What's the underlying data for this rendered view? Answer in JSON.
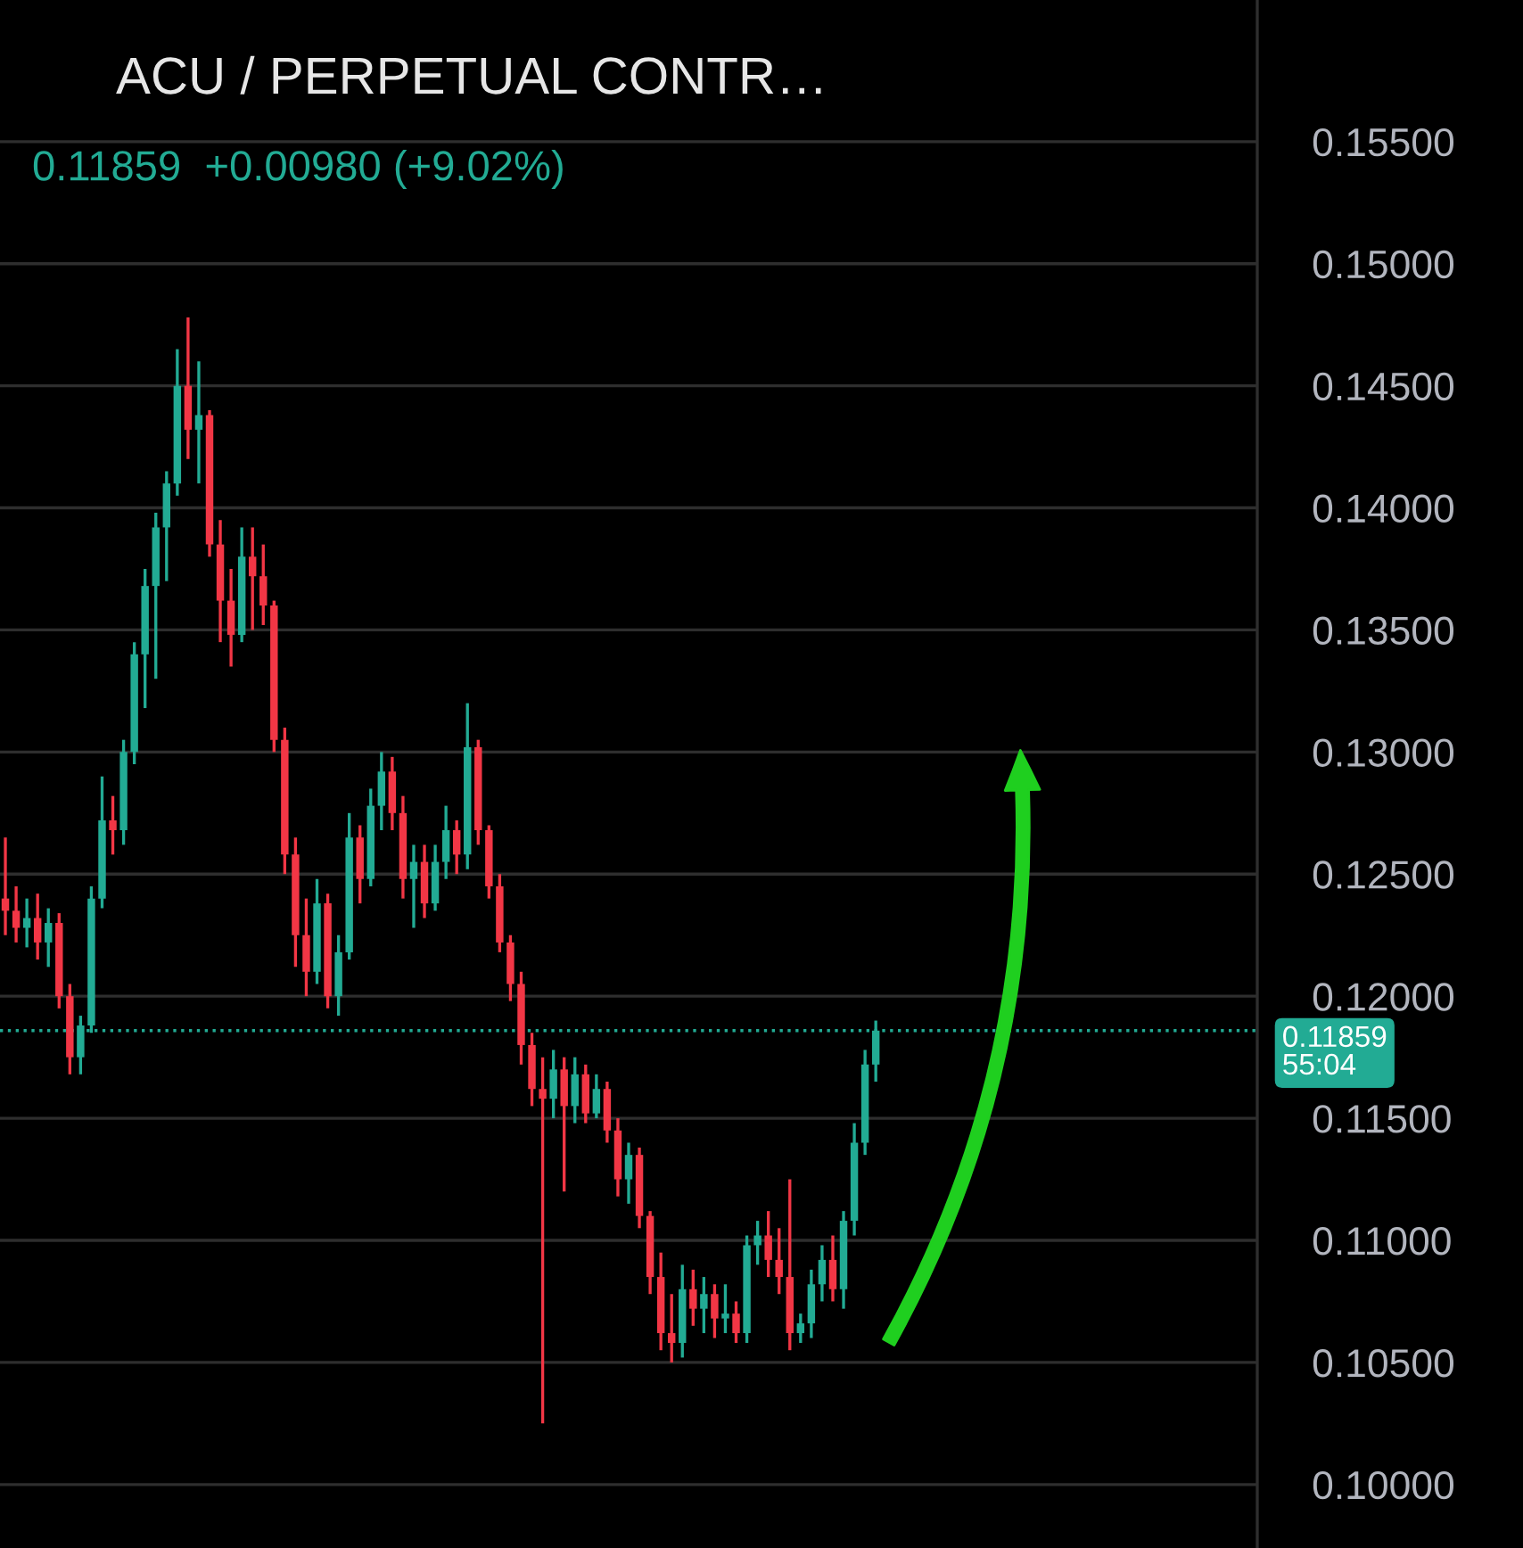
{
  "chart_data": {
    "type": "candlestick",
    "title": "ACU / PERPETUAL CONTR…",
    "subtitle": "0.11859  +0.00980 (+9.02%)",
    "categories": [
      null,
      null,
      null,
      null,
      null,
      null,
      null,
      null,
      null,
      null,
      null,
      null,
      null,
      null,
      null,
      null,
      null,
      null,
      null,
      null,
      null,
      null,
      null,
      null,
      null,
      null,
      null,
      null,
      null,
      null,
      null,
      null,
      null,
      null,
      null,
      null,
      null,
      null,
      null,
      null,
      null,
      null,
      null,
      null,
      null,
      null,
      null,
      null,
      null,
      null,
      null,
      null,
      null,
      null,
      null,
      null,
      null,
      null,
      null,
      null,
      null,
      null,
      null,
      null,
      null,
      null,
      null,
      null,
      null,
      null,
      null,
      null,
      null,
      null,
      null,
      null,
      null,
      null,
      null,
      null,
      null,
      null,
      null,
      null,
      null,
      null,
      null,
      null,
      null,
      null,
      null,
      null,
      null,
      null,
      null,
      null,
      null,
      null,
      null,
      null,
      null,
      null,
      null,
      null,
      null,
      null,
      null,
      null,
      null,
      null,
      null,
      null,
      null,
      null,
      null,
      null,
      null
    ],
    "ohlc": [
      [
        0.124,
        0.1265,
        0.1225,
        0.1235
      ],
      [
        0.1235,
        0.1245,
        0.1222,
        0.1228
      ],
      [
        0.1228,
        0.124,
        0.122,
        0.1232
      ],
      [
        0.1232,
        0.1242,
        0.1215,
        0.1222
      ],
      [
        0.1222,
        0.1236,
        0.1212,
        0.123
      ],
      [
        0.123,
        0.1234,
        0.1195,
        0.12
      ],
      [
        0.12,
        0.1205,
        0.1168,
        0.1175
      ],
      [
        0.1175,
        0.1192,
        0.1168,
        0.1188
      ],
      [
        0.1188,
        0.1245,
        0.1185,
        0.124
      ],
      [
        0.124,
        0.129,
        0.1236,
        0.1272
      ],
      [
        0.1272,
        0.1282,
        0.1258,
        0.1268
      ],
      [
        0.1268,
        0.1305,
        0.1262,
        0.13
      ],
      [
        0.13,
        0.1345,
        0.1295,
        0.134
      ],
      [
        0.134,
        0.1375,
        0.1318,
        0.1368
      ],
      [
        0.1368,
        0.1398,
        0.133,
        0.1392
      ],
      [
        0.1392,
        0.1415,
        0.137,
        0.141
      ],
      [
        0.141,
        0.1465,
        0.1405,
        0.145
      ],
      [
        0.145,
        0.1478,
        0.142,
        0.1432
      ],
      [
        0.1432,
        0.146,
        0.141,
        0.1438
      ],
      [
        0.1438,
        0.144,
        0.138,
        0.1385
      ],
      [
        0.1385,
        0.1395,
        0.1345,
        0.1362
      ],
      [
        0.1362,
        0.1375,
        0.1335,
        0.1348
      ],
      [
        0.1348,
        0.1392,
        0.1345,
        0.138
      ],
      [
        0.138,
        0.1392,
        0.135,
        0.1372
      ],
      [
        0.1372,
        0.1385,
        0.1352,
        0.136
      ],
      [
        0.136,
        0.1362,
        0.13,
        0.1305
      ],
      [
        0.1305,
        0.131,
        0.125,
        0.1258
      ],
      [
        0.1258,
        0.1265,
        0.1212,
        0.1225
      ],
      [
        0.1225,
        0.124,
        0.12,
        0.121
      ],
      [
        0.121,
        0.1248,
        0.1205,
        0.1238
      ],
      [
        0.1238,
        0.1242,
        0.1195,
        0.12
      ],
      [
        0.12,
        0.1225,
        0.1192,
        0.1218
      ],
      [
        0.1218,
        0.1275,
        0.1215,
        0.1265
      ],
      [
        0.1265,
        0.127,
        0.1238,
        0.1248
      ],
      [
        0.1248,
        0.1285,
        0.1245,
        0.1278
      ],
      [
        0.1278,
        0.13,
        0.1268,
        0.1292
      ],
      [
        0.1292,
        0.1298,
        0.1268,
        0.1275
      ],
      [
        0.1275,
        0.1282,
        0.124,
        0.1248
      ],
      [
        0.1248,
        0.1262,
        0.1228,
        0.1255
      ],
      [
        0.1255,
        0.1262,
        0.1232,
        0.1238
      ],
      [
        0.1238,
        0.1262,
        0.1235,
        0.1255
      ],
      [
        0.1255,
        0.1278,
        0.1248,
        0.1268
      ],
      [
        0.1268,
        0.1272,
        0.125,
        0.1258
      ],
      [
        0.1258,
        0.132,
        0.1252,
        0.1302
      ],
      [
        0.1302,
        0.1305,
        0.1262,
        0.1268
      ],
      [
        0.1268,
        0.127,
        0.124,
        0.1245
      ],
      [
        0.1245,
        0.125,
        0.1218,
        0.1222
      ],
      [
        0.1222,
        0.1225,
        0.1198,
        0.1205
      ],
      [
        0.1205,
        0.121,
        0.1172,
        0.118
      ],
      [
        0.118,
        0.1185,
        0.1155,
        0.1162
      ],
      [
        0.1162,
        0.1175,
        0.1025,
        0.1158
      ],
      [
        0.1158,
        0.1178,
        0.115,
        0.117
      ],
      [
        0.117,
        0.1175,
        0.112,
        0.1155
      ],
      [
        0.1155,
        0.1175,
        0.1148,
        0.1168
      ],
      [
        0.1168,
        0.1172,
        0.1148,
        0.1152
      ],
      [
        0.1152,
        0.1168,
        0.115,
        0.1162
      ],
      [
        0.1162,
        0.1165,
        0.114,
        0.1145
      ],
      [
        0.1145,
        0.115,
        0.1118,
        0.1125
      ],
      [
        0.1125,
        0.114,
        0.1115,
        0.1135
      ],
      [
        0.1135,
        0.1138,
        0.1105,
        0.111
      ],
      [
        0.111,
        0.1112,
        0.1078,
        0.1085
      ],
      [
        0.1085,
        0.1095,
        0.1055,
        0.1062
      ],
      [
        0.1062,
        0.1078,
        0.105,
        0.1058
      ],
      [
        0.1058,
        0.109,
        0.1052,
        0.108
      ],
      [
        0.108,
        0.1088,
        0.1065,
        0.1072
      ],
      [
        0.1072,
        0.1085,
        0.1062,
        0.1078
      ],
      [
        0.1078,
        0.1082,
        0.106,
        0.1068
      ],
      [
        0.1068,
        0.1082,
        0.1062,
        0.107
      ],
      [
        0.107,
        0.1075,
        0.1058,
        0.1062
      ],
      [
        0.1062,
        0.1102,
        0.1058,
        0.1098
      ],
      [
        0.1098,
        0.1108,
        0.109,
        0.1102
      ],
      [
        0.1102,
        0.1112,
        0.1085,
        0.1092
      ],
      [
        0.1092,
        0.1105,
        0.1078,
        0.1085
      ],
      [
        0.1085,
        0.1125,
        0.1055,
        0.1062
      ],
      [
        0.1062,
        0.107,
        0.1058,
        0.1066
      ],
      [
        0.1066,
        0.1088,
        0.106,
        0.1082
      ],
      [
        0.1082,
        0.1098,
        0.1075,
        0.1092
      ],
      [
        0.1092,
        0.1102,
        0.1075,
        0.108
      ],
      [
        0.108,
        0.1112,
        0.1072,
        0.1108
      ],
      [
        0.1108,
        0.1148,
        0.1102,
        0.114
      ],
      [
        0.114,
        0.1178,
        0.1135,
        0.1172
      ],
      [
        0.1172,
        0.119,
        0.1165,
        0.11859
      ],
      null,
      null,
      null,
      null,
      null,
      null,
      null,
      null,
      null,
      null,
      null,
      null,
      null,
      null,
      null,
      null,
      null,
      null,
      null,
      null,
      null,
      null,
      null,
      null,
      null,
      null,
      null,
      null,
      null,
      null,
      null,
      null,
      null,
      null,
      null
    ],
    "colors": [
      "#f23645",
      "#f23645",
      "#22ab94",
      "#f23645",
      "#22ab94",
      "#f23645",
      "#f23645",
      "#22ab94",
      "#22ab94",
      "#22ab94",
      "#f23645",
      "#22ab94",
      "#22ab94",
      "#22ab94",
      "#22ab94",
      "#22ab94",
      "#22ab94",
      "#f23645",
      "#22ab94",
      "#f23645",
      "#f23645",
      "#f23645",
      "#22ab94",
      "#f23645",
      "#f23645",
      "#f23645",
      "#f23645",
      "#f23645",
      "#f23645",
      "#22ab94",
      "#f23645",
      "#22ab94",
      "#22ab94",
      "#f23645",
      "#22ab94",
      "#22ab94",
      "#f23645",
      "#f23645",
      "#22ab94",
      "#f23645",
      "#22ab94",
      "#22ab94",
      "#f23645",
      "#22ab94",
      "#f23645",
      "#f23645",
      "#f23645",
      "#f23645",
      "#f23645",
      "#f23645",
      "#f23645",
      "#22ab94",
      "#f23645",
      "#22ab94",
      "#f23645",
      "#22ab94",
      "#f23645",
      "#f23645",
      "#22ab94",
      "#f23645",
      "#f23645",
      "#f23645",
      "#f23645",
      "#22ab94",
      "#f23645",
      "#22ab94",
      "#f23645",
      "#22ab94",
      "#f23645",
      "#22ab94",
      "#22ab94",
      "#f23645",
      "#f23645",
      "#f23645",
      "#22ab94",
      "#22ab94",
      "#22ab94",
      "#f23645",
      "#22ab94",
      "#22ab94",
      "#22ab94",
      "#22ab94",
      null,
      null,
      null,
      null,
      null,
      null,
      null,
      null,
      null,
      null,
      null,
      null,
      null,
      null,
      null,
      null,
      null,
      null,
      null,
      null,
      null,
      null,
      null,
      null,
      null,
      null,
      null,
      null,
      null,
      null,
      null,
      null,
      null,
      null,
      null
    ],
    "ylim": [
      0.0974,
      0.1608
    ],
    "yticks": [
      {
        "value": 0.1,
        "label": "0.10000"
      },
      {
        "value": 0.105,
        "label": "0.10500"
      },
      {
        "value": 0.11,
        "label": "0.11000"
      },
      {
        "value": 0.115,
        "label": "0.11500"
      },
      {
        "value": 0.12,
        "label": "0.12000"
      },
      {
        "value": 0.125,
        "label": "0.12500"
      },
      {
        "value": 0.13,
        "label": "0.13000"
      },
      {
        "value": 0.135,
        "label": "0.13500"
      },
      {
        "value": 0.14,
        "label": "0.14000"
      },
      {
        "value": 0.145,
        "label": "0.14500"
      },
      {
        "value": 0.15,
        "label": "0.15000"
      },
      {
        "value": 0.155,
        "label": "0.15500"
      }
    ],
    "tick_labels": "y",
    "grid": "y",
    "ref_lines": [
      {
        "axis": "y",
        "value": 0.11859,
        "label": "0.11859",
        "color": "#22ab94",
        "line_style": "dotted"
      }
    ],
    "annotations": [
      "55:04"
    ]
  }
}
